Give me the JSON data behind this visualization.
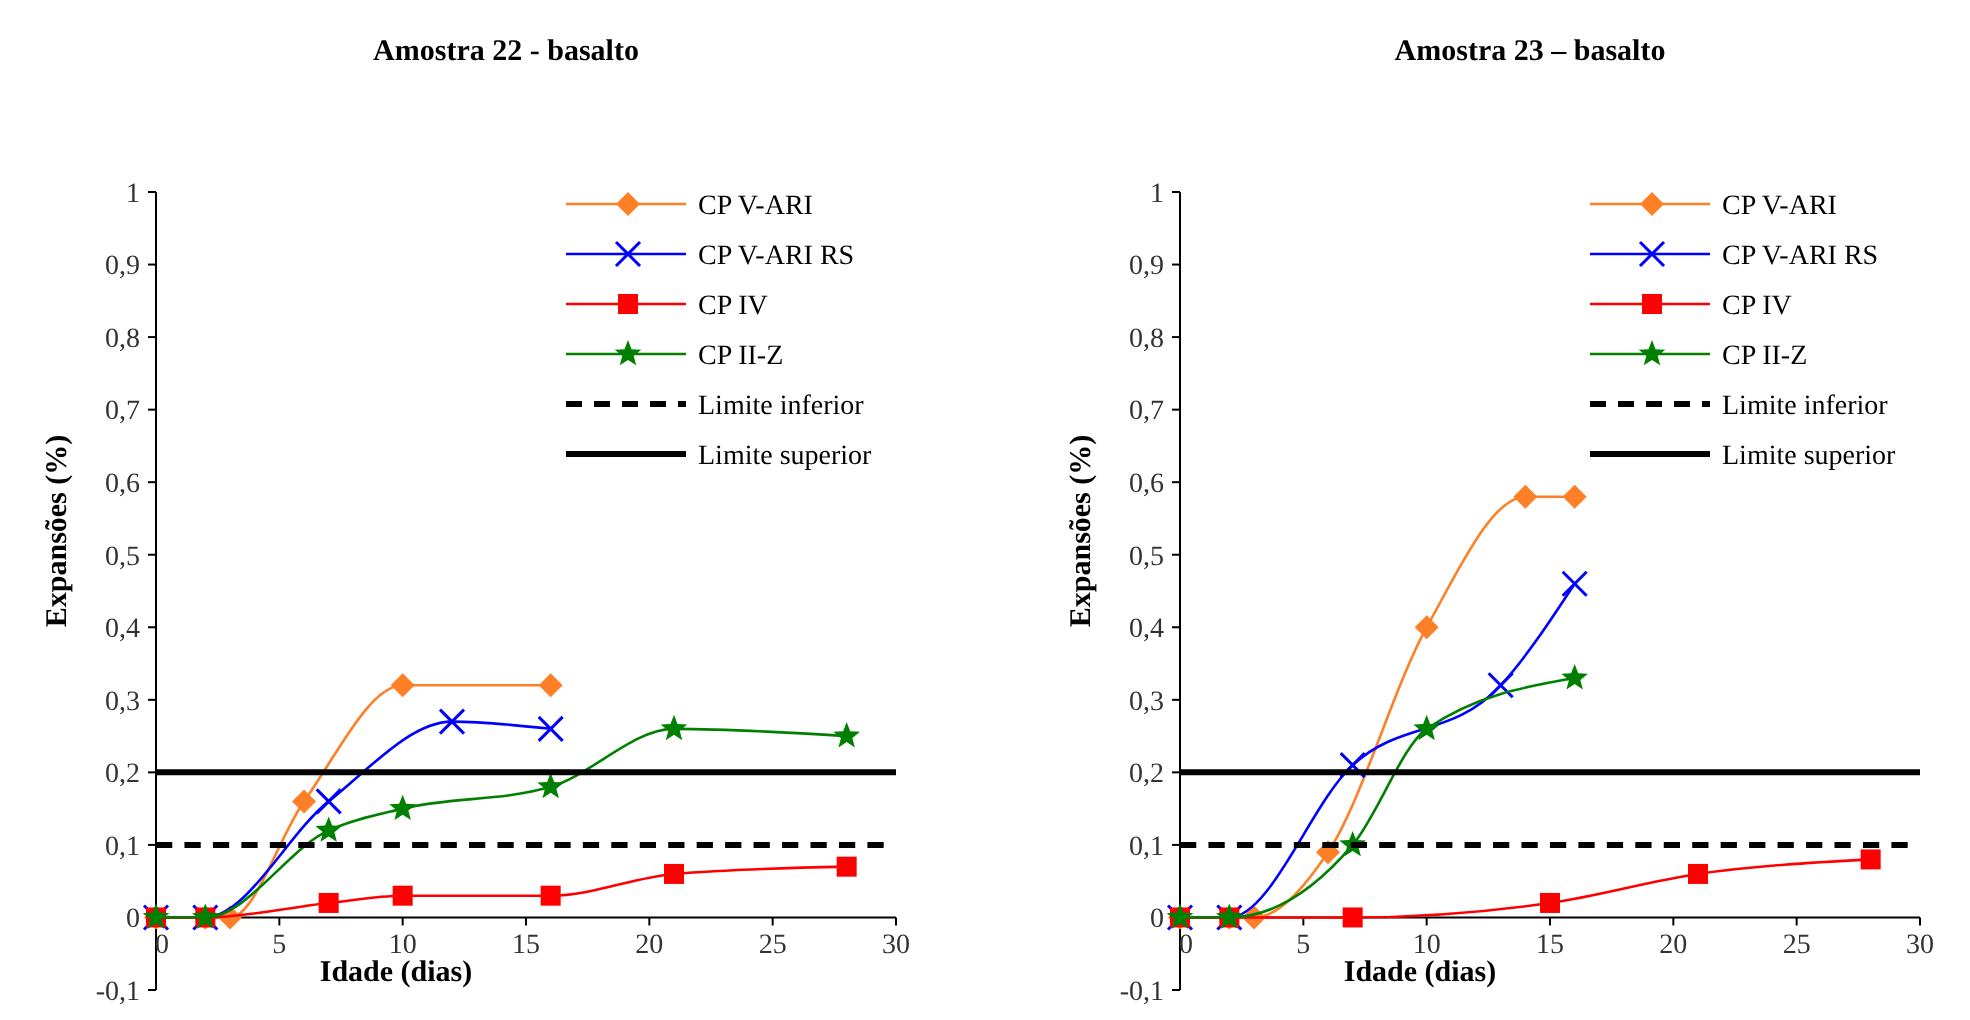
{
  "chart_data": [
    {
      "type": "line",
      "title": "Amostra 22 - basalto",
      "xlabel": "Idade (dias)",
      "ylabel": "Expansões (%)",
      "xlim": [
        0,
        30
      ],
      "xticks": [
        0,
        5,
        10,
        15,
        20,
        25,
        30
      ],
      "ylim": [
        -0.1,
        1
      ],
      "yticks": [
        {
          "value": -0.1,
          "label": "-0,1"
        },
        {
          "value": 0,
          "label": "0"
        },
        {
          "value": 0.1,
          "label": "0,1"
        },
        {
          "value": 0.2,
          "label": "0,2"
        },
        {
          "value": 0.3,
          "label": "0,3"
        },
        {
          "value": 0.4,
          "label": "0,4"
        },
        {
          "value": 0.5,
          "label": "0,5"
        },
        {
          "value": 0.6,
          "label": "0,6"
        },
        {
          "value": 0.7,
          "label": "0,7"
        },
        {
          "value": 0.8,
          "label": "0,8"
        },
        {
          "value": 0.9,
          "label": "0,9"
        },
        {
          "value": 1,
          "label": "1"
        }
      ],
      "grid": false,
      "legend": "top right",
      "series": [
        {
          "name": "CP V-ARI",
          "color": "#ff7f27",
          "marker": "diamond",
          "x": [
            0,
            2,
            3,
            6,
            10,
            16
          ],
          "values": [
            0,
            0,
            0,
            0.16,
            0.32,
            0.32
          ]
        },
        {
          "name": "CP V-ARI RS",
          "color": "#0000ff",
          "marker": "cross",
          "x": [
            0,
            2,
            7,
            12,
            16
          ],
          "values": [
            0,
            0,
            0.16,
            0.27,
            0.26
          ]
        },
        {
          "name": "CP IV",
          "color": "#ff0000",
          "marker": "square",
          "x": [
            0,
            2,
            7,
            10,
            16,
            21,
            28
          ],
          "values": [
            0,
            0,
            0.02,
            0.03,
            0.03,
            0.06,
            0.07
          ]
        },
        {
          "name": "CP II-Z",
          "color": "#008000",
          "marker": "star",
          "x": [
            0,
            2,
            7,
            10,
            16,
            21,
            28
          ],
          "values": [
            0,
            0,
            0.12,
            0.15,
            0.18,
            0.26,
            0.25
          ]
        },
        {
          "name": "Limite inferior",
          "color": "#000000",
          "marker": "none",
          "line_style": "dashed",
          "x": [
            0,
            29.5
          ],
          "values": [
            0.1,
            0.1
          ]
        },
        {
          "name": "Limite superior",
          "color": "#000000",
          "marker": "none",
          "line_style": "solid",
          "x": [
            0,
            30
          ],
          "values": [
            0.2,
            0.2
          ]
        }
      ]
    },
    {
      "type": "line",
      "title": "Amostra 23 – basalto",
      "xlabel": "Idade (dias)",
      "ylabel": "Expansões (%)",
      "xlim": [
        0,
        30
      ],
      "xticks": [
        0,
        5,
        10,
        15,
        20,
        25,
        30
      ],
      "ylim": [
        -0.1,
        1
      ],
      "yticks": [
        {
          "value": -0.1,
          "label": "-0,1"
        },
        {
          "value": 0,
          "label": "0"
        },
        {
          "value": 0.1,
          "label": "0,1"
        },
        {
          "value": 0.2,
          "label": "0,2"
        },
        {
          "value": 0.3,
          "label": "0,3"
        },
        {
          "value": 0.4,
          "label": "0,4"
        },
        {
          "value": 0.5,
          "label": "0,5"
        },
        {
          "value": 0.6,
          "label": "0,6"
        },
        {
          "value": 0.7,
          "label": "0,7"
        },
        {
          "value": 0.8,
          "label": "0,8"
        },
        {
          "value": 0.9,
          "label": "0,9"
        },
        {
          "value": 1,
          "label": "1"
        }
      ],
      "grid": false,
      "legend": "top right",
      "series": [
        {
          "name": "CP V-ARI",
          "color": "#ff7f27",
          "marker": "diamond",
          "x": [
            0,
            2,
            3,
            6,
            10,
            14,
            16
          ],
          "values": [
            0,
            0,
            0,
            0.09,
            0.4,
            0.58,
            0.58
          ]
        },
        {
          "name": "CP V-ARI RS",
          "color": "#0000ff",
          "marker": "cross",
          "x": [
            0,
            2,
            7,
            13,
            16
          ],
          "values": [
            0,
            0,
            0.21,
            0.32,
            0.46
          ]
        },
        {
          "name": "CP IV",
          "color": "#ff0000",
          "marker": "square",
          "x": [
            0,
            2,
            7,
            15,
            21,
            28
          ],
          "values": [
            0,
            0,
            0,
            0.02,
            0.06,
            0.08
          ]
        },
        {
          "name": "CP II-Z",
          "color": "#008000",
          "marker": "star",
          "x": [
            0,
            2,
            7,
            10,
            16
          ],
          "values": [
            0,
            0,
            0.1,
            0.26,
            0.33
          ]
        },
        {
          "name": "Limite inferior",
          "color": "#000000",
          "marker": "none",
          "line_style": "dashed",
          "x": [
            0,
            29.5
          ],
          "values": [
            0.1,
            0.1
          ]
        },
        {
          "name": "Limite superior",
          "color": "#000000",
          "marker": "none",
          "line_style": "solid",
          "x": [
            0,
            30
          ],
          "values": [
            0.2,
            0.2
          ]
        }
      ]
    }
  ]
}
